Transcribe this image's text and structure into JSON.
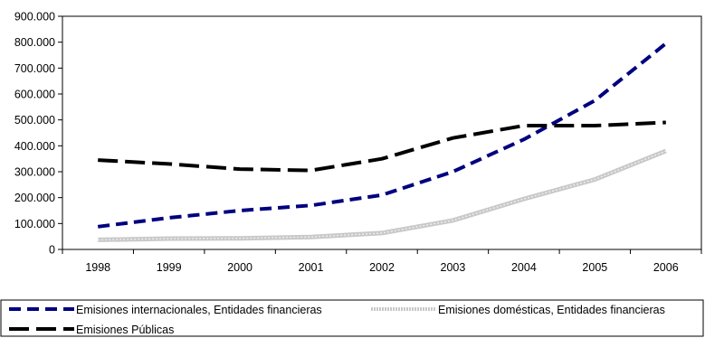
{
  "chart_data": {
    "type": "line",
    "categories": [
      "1998",
      "1999",
      "2000",
      "2001",
      "2002",
      "2003",
      "2004",
      "2005",
      "2006"
    ],
    "series": [
      {
        "name": "Emisiones internacionales, Entidades financieras",
        "values": [
          88000,
          122000,
          150000,
          170000,
          210000,
          300000,
          425000,
          575000,
          795000
        ],
        "color": "#000080",
        "style": "dashed"
      },
      {
        "name": "Emisiones domésticas, Entidades financieras",
        "values": [
          37000,
          42000,
          43000,
          48000,
          63000,
          112000,
          195000,
          270000,
          380000
        ],
        "color": "#c0c0c0",
        "style": "textured"
      },
      {
        "name": "Emisiones Públicas",
        "values": [
          345000,
          330000,
          310000,
          305000,
          350000,
          430000,
          478000,
          478000,
          490000
        ],
        "color": "#000000",
        "style": "dashed"
      }
    ],
    "y_ticks": [
      "0",
      "100.000",
      "200.000",
      "300.000",
      "400.000",
      "500.000",
      "600.000",
      "700.000",
      "800.000",
      "900.000"
    ],
    "ylim": [
      0,
      900000
    ],
    "grid": false,
    "legend_position": "bottom"
  }
}
